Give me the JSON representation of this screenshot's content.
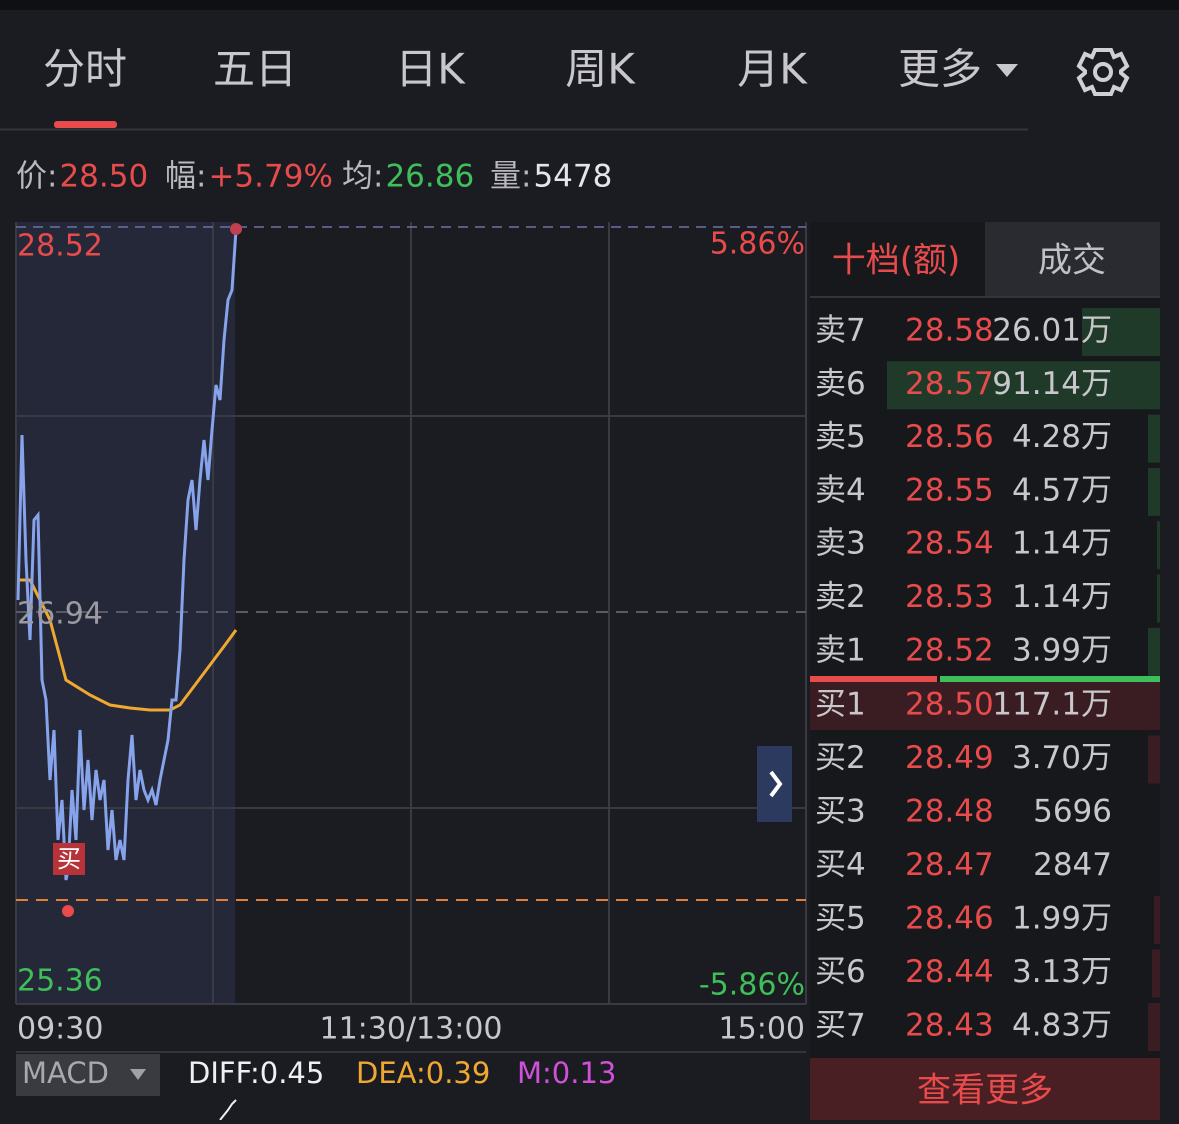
{
  "tabs": [
    "分时",
    "五日",
    "日K",
    "周K",
    "月K",
    "更多"
  ],
  "info": [
    {
      "label": "价:",
      "value": "28.50"
    },
    {
      "label": "幅:",
      "value": "+5.79%"
    },
    {
      "label": "均:",
      "value": "26.86"
    },
    {
      "label": "量:",
      "value": "5478"
    }
  ],
  "chart": {
    "y_top": "28.52",
    "y_mid": "26.94",
    "y_bottom": "25.36",
    "pct_top": "5.86%",
    "pct_bottom": "-5.86%",
    "times": [
      "09:30",
      "11:30/13:00",
      "15:00"
    ],
    "buy_marker": "买"
  },
  "orderbook": {
    "tabs": [
      "十档(额)",
      "成交"
    ],
    "asks": [
      [
        "卖7",
        "28.58",
        "26.01万"
      ],
      [
        "卖6",
        "28.57",
        "91.14万"
      ],
      [
        "卖5",
        "28.56",
        "4.28万"
      ],
      [
        "卖4",
        "28.55",
        "4.57万"
      ],
      [
        "卖3",
        "28.54",
        "1.14万"
      ],
      [
        "卖2",
        "28.53",
        "1.14万"
      ],
      [
        "卖1",
        "28.52",
        "3.99万"
      ]
    ],
    "bids": [
      [
        "买1",
        "28.50",
        "117.1万"
      ],
      [
        "买2",
        "28.49",
        "3.70万"
      ],
      [
        "买3",
        "28.48",
        "5696"
      ],
      [
        "买4",
        "28.47",
        "2847"
      ],
      [
        "买5",
        "28.46",
        "1.99万"
      ],
      [
        "买6",
        "28.44",
        "3.13万"
      ],
      [
        "买7",
        "28.43",
        "4.83万"
      ]
    ],
    "more": "查看更多"
  },
  "macd": {
    "selector": "MACD",
    "diff": "DIFF:0.45",
    "dea": "DEA:0.39",
    "m": "M:0.13"
  }
}
